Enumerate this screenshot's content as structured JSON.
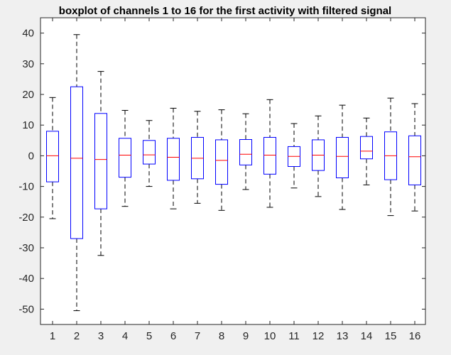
{
  "chart_data": {
    "type": "boxplot",
    "title": "boxplot of channels 1 to 16 for the first activity with filtered signal",
    "xlabel": "",
    "ylabel": "",
    "ylim": [
      -55,
      45
    ],
    "yticks": [
      40,
      30,
      20,
      10,
      0,
      -10,
      -20,
      -30,
      -40,
      -50
    ],
    "grid": false,
    "categories": [
      "1",
      "2",
      "3",
      "4",
      "5",
      "6",
      "7",
      "8",
      "9",
      "10",
      "11",
      "12",
      "13",
      "14",
      "15",
      "16"
    ],
    "boxes": [
      {
        "whisker_low": -20.5,
        "q1": -8.5,
        "median": 0.0,
        "q3": 8.0,
        "whisker_high": 19.0
      },
      {
        "whisker_low": -50.5,
        "q1": -27.0,
        "median": -0.8,
        "q3": 22.5,
        "whisker_high": 39.5
      },
      {
        "whisker_low": -32.5,
        "q1": -17.3,
        "median": -1.2,
        "q3": 13.8,
        "whisker_high": 27.5
      },
      {
        "whisker_low": -16.5,
        "q1": -7.0,
        "median": 0.2,
        "q3": 5.7,
        "whisker_high": 14.8
      },
      {
        "whisker_low": -10.0,
        "q1": -2.7,
        "median": 0.3,
        "q3": 5.0,
        "whisker_high": 11.5
      },
      {
        "whisker_low": -17.3,
        "q1": -8.0,
        "median": -0.5,
        "q3": 5.7,
        "whisker_high": 15.5
      },
      {
        "whisker_low": -15.5,
        "q1": -7.5,
        "median": -0.8,
        "q3": 6.0,
        "whisker_high": 14.5
      },
      {
        "whisker_low": -17.8,
        "q1": -9.3,
        "median": -1.5,
        "q3": 5.2,
        "whisker_high": 15.0
      },
      {
        "whisker_low": -11.0,
        "q1": -3.0,
        "median": 0.5,
        "q3": 5.3,
        "whisker_high": 13.7
      },
      {
        "whisker_low": -16.8,
        "q1": -6.0,
        "median": 0.2,
        "q3": 6.0,
        "whisker_high": 18.3
      },
      {
        "whisker_low": -10.5,
        "q1": -3.5,
        "median": -0.2,
        "q3": 3.0,
        "whisker_high": 10.5
      },
      {
        "whisker_low": -13.3,
        "q1": -4.8,
        "median": 0.2,
        "q3": 5.2,
        "whisker_high": 13.0
      },
      {
        "whisker_low": -17.5,
        "q1": -7.2,
        "median": -0.2,
        "q3": 6.0,
        "whisker_high": 16.5
      },
      {
        "whisker_low": -9.5,
        "q1": -1.0,
        "median": 1.5,
        "q3": 6.3,
        "whisker_high": 12.3
      },
      {
        "whisker_low": -19.5,
        "q1": -7.8,
        "median": 0.0,
        "q3": 7.8,
        "whisker_high": 18.8
      },
      {
        "whisker_low": -18.0,
        "q1": -9.5,
        "median": -0.3,
        "q3": 6.5,
        "whisker_high": 17.0
      }
    ]
  },
  "colors": {
    "figure_background": "#f0f0f0",
    "axes_background": "#ffffff",
    "axes_edge": "#262626",
    "box": "#0000ff",
    "median": "#ff0000",
    "whisker": "#000000"
  }
}
